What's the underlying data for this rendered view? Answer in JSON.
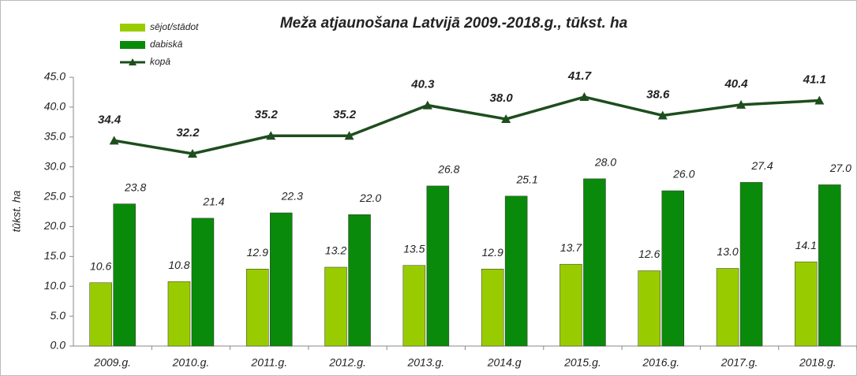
{
  "chart_data": {
    "type": "bar",
    "title": "Meža atjaunošana Latvijā 2009.-2018.g., tūkst. ha",
    "y_label": "tūkst. ha",
    "categories": [
      "2009.g.",
      "2010.g.",
      "2011.g.",
      "2012.g.",
      "2013.g.",
      "2014.g",
      "2015.g.",
      "2016.g.",
      "2017.g.",
      "2018.g."
    ],
    "series": [
      {
        "name": "sējot/stādot",
        "color": "#99cc00",
        "type": "bar",
        "values": [
          10.6,
          10.8,
          12.9,
          13.2,
          13.5,
          12.9,
          13.7,
          12.6,
          13.0,
          14.1
        ],
        "value_labels": [
          "10.6",
          "10.8",
          "12.9",
          "13.2",
          "13.5",
          "12.9",
          "13.7",
          "12.6",
          "13.0",
          "14.1"
        ]
      },
      {
        "name": "dabiskā",
        "color": "#0a8a0a",
        "type": "bar",
        "values": [
          23.8,
          21.4,
          22.3,
          22.0,
          26.8,
          25.1,
          28.0,
          26.0,
          27.4,
          27.0
        ],
        "value_labels": [
          "23.8",
          "21.4",
          "22.3",
          "22.0",
          "26.8",
          "25.1",
          "28.0",
          "26.0",
          "27.4",
          "27.0"
        ]
      },
      {
        "name": "kopā",
        "color": "#1e4d1e",
        "type": "line",
        "values": [
          34.4,
          32.2,
          35.2,
          35.2,
          40.3,
          38.0,
          41.7,
          38.6,
          40.4,
          41.1
        ],
        "value_labels": [
          "34.4",
          "32.2",
          "35.2",
          "35.2",
          "40.3",
          "38.0",
          "41.7",
          "38.6",
          "40.4",
          "41.1"
        ]
      }
    ],
    "ylim": [
      0,
      45
    ],
    "yticks": [
      {
        "value": 0,
        "label": "0.0"
      },
      {
        "value": 5,
        "label": "5.0"
      },
      {
        "value": 10,
        "label": "10.0"
      },
      {
        "value": 15,
        "label": "15.0"
      },
      {
        "value": 20,
        "label": "20.0"
      },
      {
        "value": 25,
        "label": "25.0"
      },
      {
        "value": 30,
        "label": "30.0"
      },
      {
        "value": 35,
        "label": "35.0"
      },
      {
        "value": 40,
        "label": "40.0"
      },
      {
        "value": 45,
        "label": "45.0"
      }
    ],
    "grid": false
  }
}
